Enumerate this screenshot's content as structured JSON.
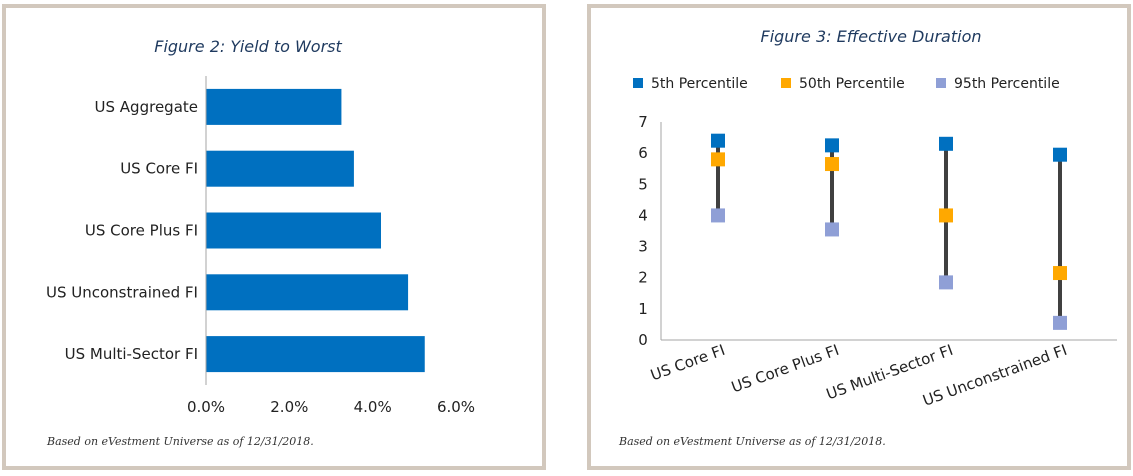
{
  "colors": {
    "bar": "#0070c0",
    "p5": "#0070c0",
    "p50": "#ffa800",
    "p95": "#8f9fd6",
    "range_line": "#404040",
    "axis": "#a6a6a6",
    "title": "#1f3a5f"
  },
  "chart_data": [
    {
      "type": "bar",
      "orientation": "horizontal",
      "title": "Figure 2:  Yield to Worst",
      "categories": [
        "US Aggregate",
        "US Core FI",
        "US Core Plus FI",
        "US Unconstrained FI",
        "US Multi-Sector FI"
      ],
      "values": [
        3.25,
        3.55,
        4.2,
        4.85,
        5.25
      ],
      "xlim": [
        0,
        6
      ],
      "xticks": [
        0,
        2,
        4,
        6
      ],
      "xtick_labels": [
        "0.0%",
        "2.0%",
        "4.0%",
        "6.0%"
      ],
      "xlabel": "",
      "ylabel": "",
      "footnote": "Based on eVestment Universe as of 12/31/2018."
    },
    {
      "type": "scatter",
      "subtype": "high-low range",
      "title": "Figure 3:  Effective Duration",
      "categories": [
        "US Core FI",
        "US Core Plus FI",
        "US Multi-Sector FI",
        "US Unconstrained FI"
      ],
      "series": [
        {
          "name": "5th Percentile",
          "values": [
            6.4,
            6.25,
            6.3,
            5.95
          ]
        },
        {
          "name": "50th Percentile",
          "values": [
            5.8,
            5.65,
            4.0,
            2.15
          ]
        },
        {
          "name": "95th Percentile",
          "values": [
            4.0,
            3.55,
            1.85,
            0.55
          ]
        }
      ],
      "ylim": [
        0,
        7
      ],
      "yticks": [
        0,
        1,
        2,
        3,
        4,
        5,
        6,
        7
      ],
      "ytick_labels": [
        "0",
        "1",
        "2",
        "3",
        "4",
        "5",
        "6",
        "7"
      ],
      "legend_position": "top",
      "xlabel": "",
      "ylabel": "",
      "footnote": "Based on eVestment Universe as of 12/31/2018."
    }
  ]
}
